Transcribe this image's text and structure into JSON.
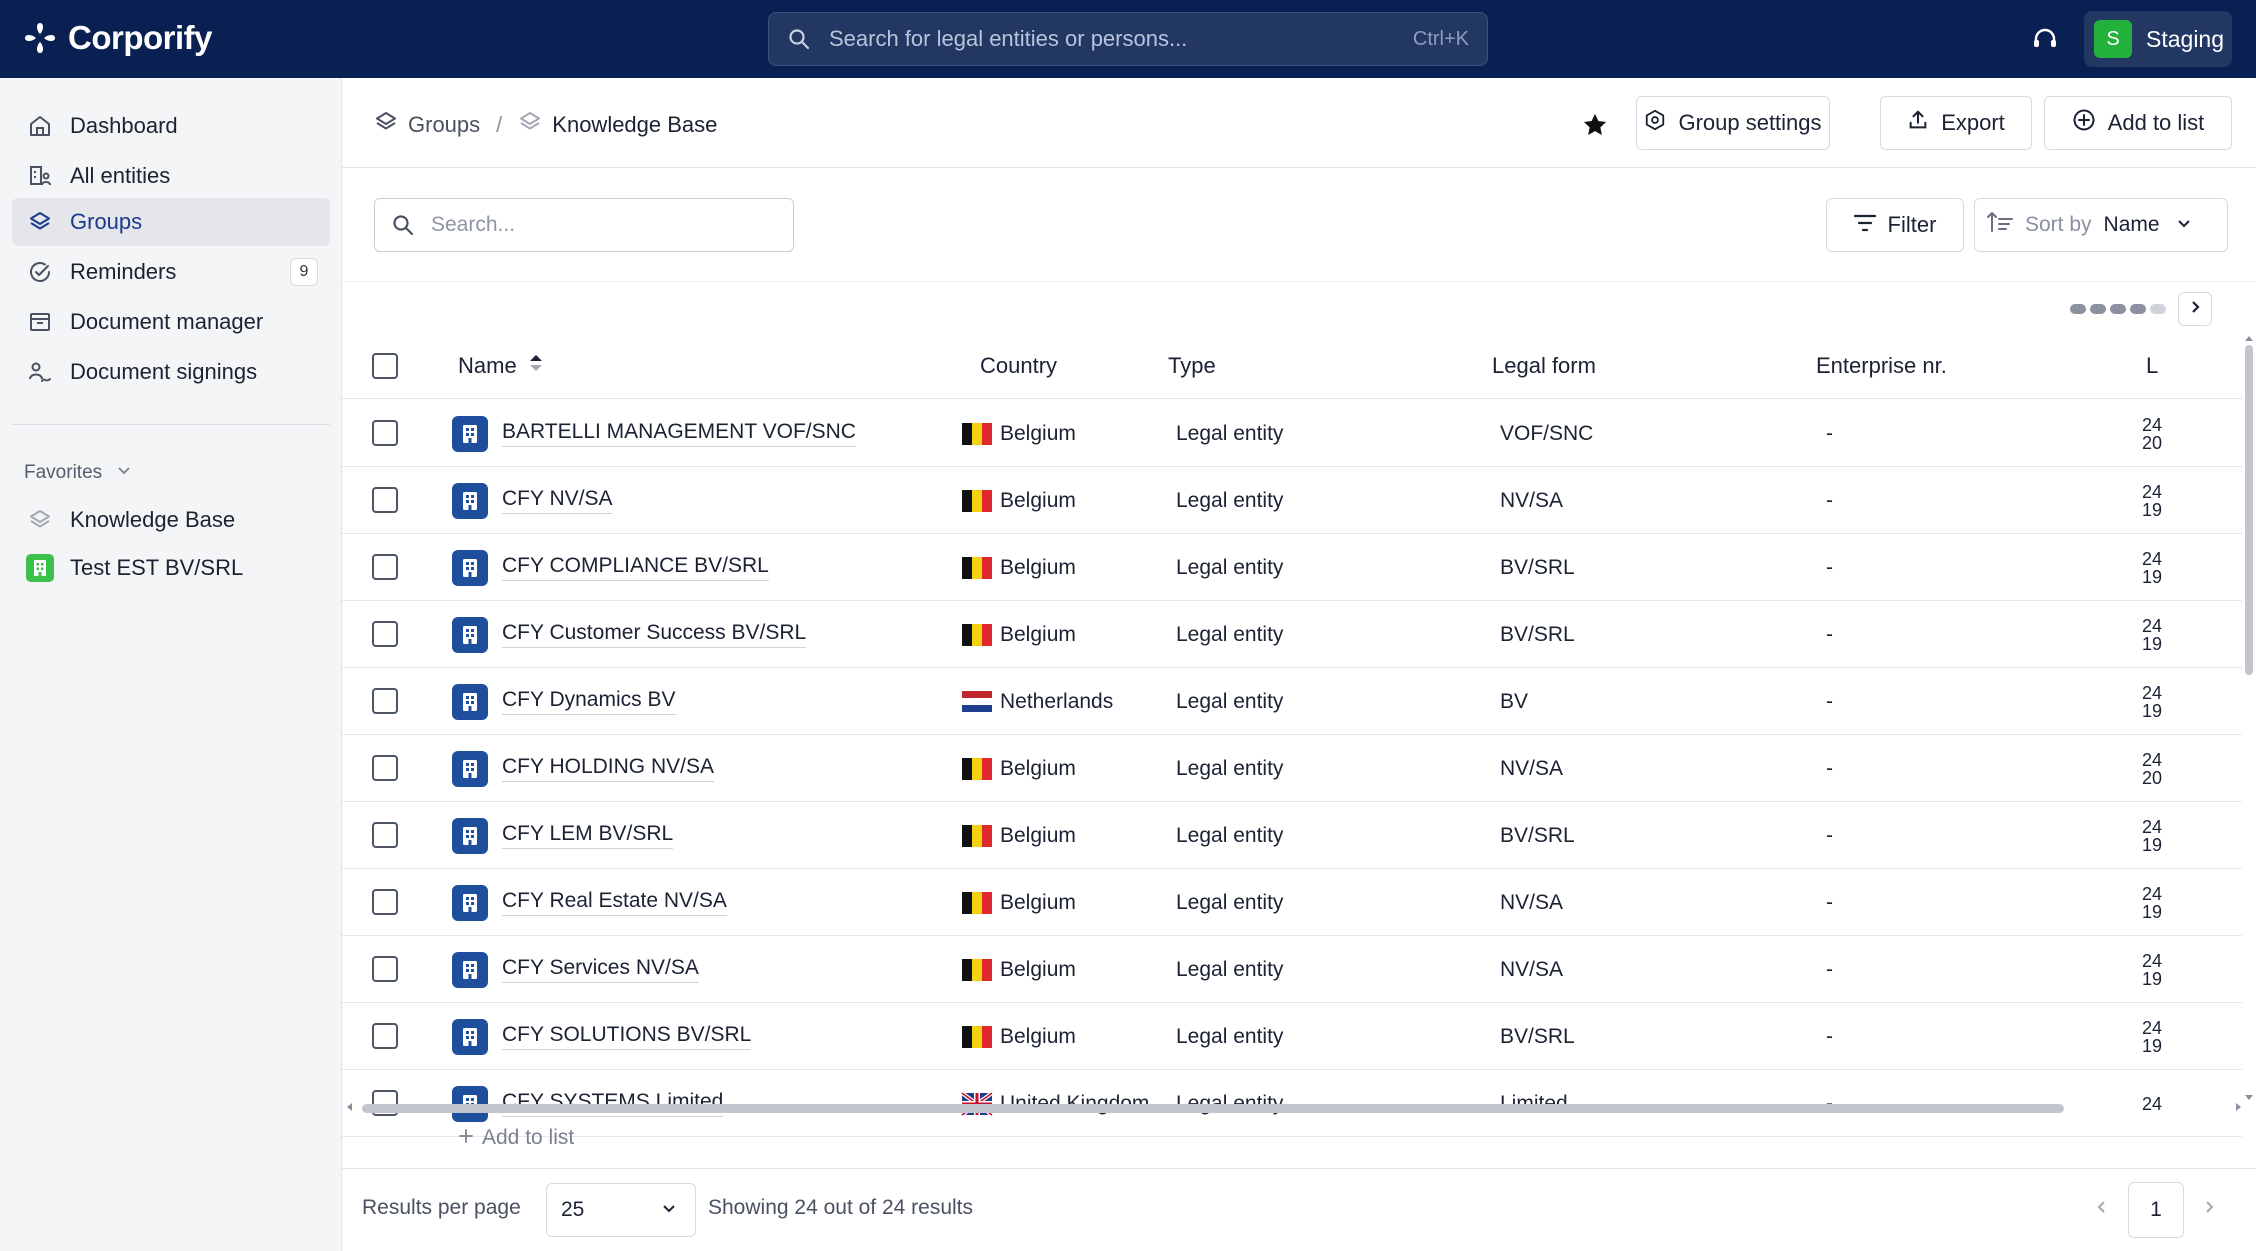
{
  "app": {
    "name": "Corporify",
    "search_placeholder": "Search for legal entities or persons...",
    "search_shortcut": "Ctrl+K",
    "env_badge": "S",
    "env_label": "Staging"
  },
  "sidebar": {
    "items": [
      {
        "label": "Dashboard",
        "icon": "home-icon"
      },
      {
        "label": "All entities",
        "icon": "entities-icon"
      },
      {
        "label": "Groups",
        "icon": "layers-icon",
        "active": true
      },
      {
        "label": "Reminders",
        "icon": "check-circle-icon",
        "count": "9"
      },
      {
        "label": "Document manager",
        "icon": "archive-icon"
      },
      {
        "label": "Document signings",
        "icon": "signature-icon"
      }
    ],
    "favorites_label": "Favorites",
    "favorites": [
      {
        "label": "Knowledge Base",
        "icon": "layers-icon"
      },
      {
        "label": "Test EST BV/SRL",
        "icon": "building-icon"
      }
    ]
  },
  "header": {
    "breadcrumb_root": "Groups",
    "breadcrumb_sep": "/",
    "breadcrumb_current": "Knowledge Base",
    "group_settings": "Group settings",
    "export": "Export",
    "add_to_list": "Add to list"
  },
  "toolbar": {
    "search_placeholder": "Search...",
    "filter": "Filter",
    "sort_label": "Sort by",
    "sort_value": "Name"
  },
  "table": {
    "columns": [
      "Name",
      "Country",
      "Type",
      "Legal form",
      "Enterprise nr.",
      "L"
    ],
    "rows": [
      {
        "name": "BARTELLI MANAGEMENT VOF/SNC",
        "country": "Belgium",
        "flag": "be",
        "type": "Legal entity",
        "form": "VOF/SNC",
        "ent": "-",
        "l1": "24",
        "l2": "20"
      },
      {
        "name": "CFY NV/SA",
        "country": "Belgium",
        "flag": "be",
        "type": "Legal entity",
        "form": "NV/SA",
        "ent": "-",
        "l1": "24",
        "l2": "19"
      },
      {
        "name": "CFY COMPLIANCE BV/SRL",
        "country": "Belgium",
        "flag": "be",
        "type": "Legal entity",
        "form": "BV/SRL",
        "ent": "-",
        "l1": "24",
        "l2": "19"
      },
      {
        "name": "CFY Customer Success BV/SRL",
        "country": "Belgium",
        "flag": "be",
        "type": "Legal entity",
        "form": "BV/SRL",
        "ent": "-",
        "l1": "24",
        "l2": "19"
      },
      {
        "name": "CFY Dynamics BV",
        "country": "Netherlands",
        "flag": "nl",
        "type": "Legal entity",
        "form": "BV",
        "ent": "-",
        "l1": "24",
        "l2": "19"
      },
      {
        "name": "CFY HOLDING NV/SA",
        "country": "Belgium",
        "flag": "be",
        "type": "Legal entity",
        "form": "NV/SA",
        "ent": "-",
        "l1": "24",
        "l2": "20"
      },
      {
        "name": "CFY LEM BV/SRL",
        "country": "Belgium",
        "flag": "be",
        "type": "Legal entity",
        "form": "BV/SRL",
        "ent": "-",
        "l1": "24",
        "l2": "19"
      },
      {
        "name": "CFY Real Estate NV/SA",
        "country": "Belgium",
        "flag": "be",
        "type": "Legal entity",
        "form": "NV/SA",
        "ent": "-",
        "l1": "24",
        "l2": "19"
      },
      {
        "name": "CFY Services NV/SA",
        "country": "Belgium",
        "flag": "be",
        "type": "Legal entity",
        "form": "NV/SA",
        "ent": "-",
        "l1": "24",
        "l2": "19"
      },
      {
        "name": "CFY SOLUTIONS BV/SRL",
        "country": "Belgium",
        "flag": "be",
        "type": "Legal entity",
        "form": "BV/SRL",
        "ent": "-",
        "l1": "24",
        "l2": "19"
      },
      {
        "name": "CFY SYSTEMS Limited",
        "country": "United Kingdom",
        "flag": "uk",
        "type": "Legal entity",
        "form": "Limited",
        "ent": "-",
        "l1": "24",
        "l2": ""
      }
    ],
    "add_to_list": "Add to list"
  },
  "footer": {
    "results_per_page_label": "Results per page",
    "results_per_page": "25",
    "showing": "Showing 24 out of 24 results",
    "current_page": "1"
  },
  "colors": {
    "topbar": "#0a1f52",
    "entity_icon": "#1d4f9c",
    "env_badge": "#22b13a",
    "active_nav": "#1c3a8a"
  }
}
